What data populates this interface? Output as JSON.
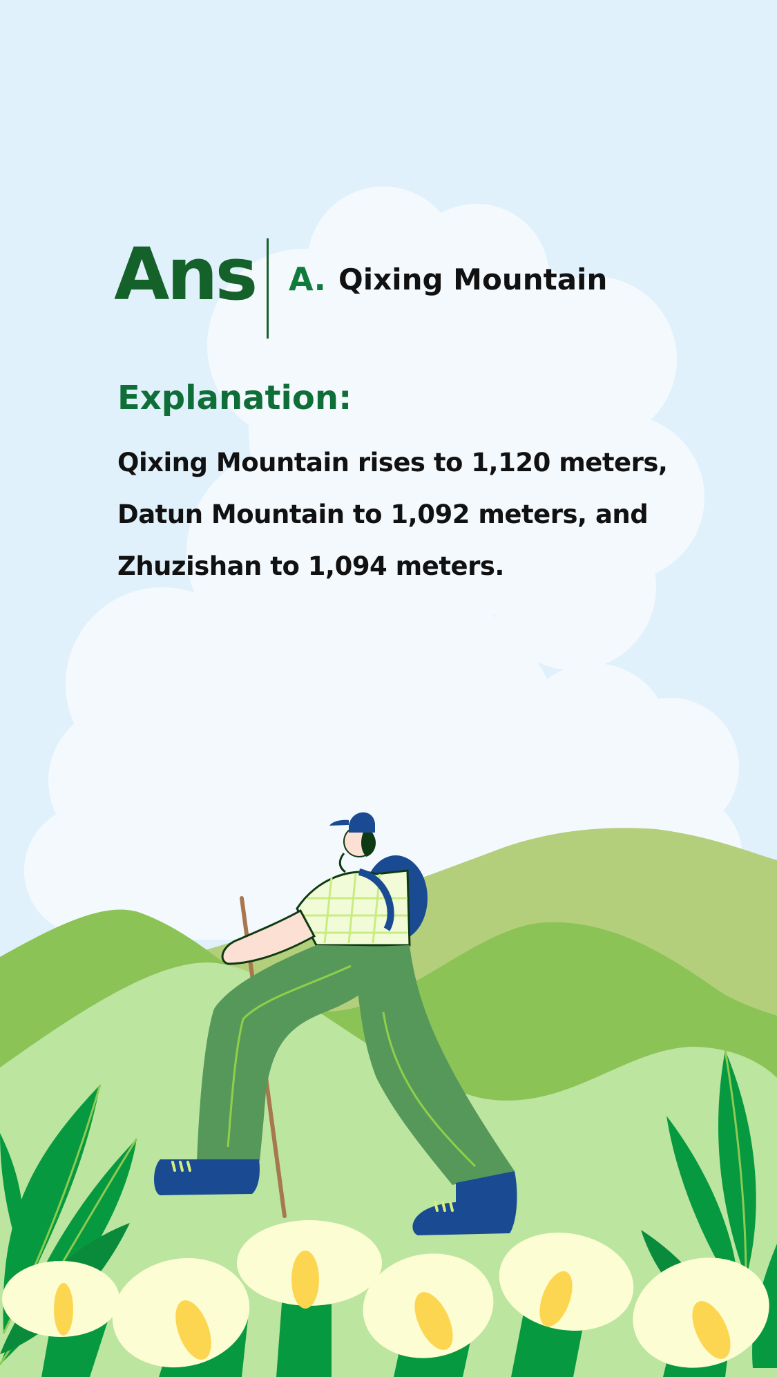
{
  "answer": {
    "label": "Ans",
    "option_letter": "A.",
    "option_text": "Qixing Mountain"
  },
  "explanation": {
    "title": "Explanation:",
    "body": "Qixing Mountain rises to 1,120 meters, Datun Mountain to 1,092 meters, and Zhuzishan to 1,094 meters."
  },
  "colors": {
    "sky": "#e0f1fb",
    "cloud": "#f4f9fe",
    "hill_far": "#b4cf7c",
    "hill_mid": "#8cc357",
    "hill_front": "#bce5a0",
    "leaf_dark": "#07993f",
    "flower": "#fdfdd3",
    "flower_center": "#fdd651",
    "pants": "#56985a",
    "shoes_backpack": "#1a4b92",
    "answer_accent": "#14612a"
  },
  "illustration": {
    "icons": [
      "cloud-icon",
      "hills-icon",
      "hiker-icon",
      "calla-lily-icon",
      "leaf-icon"
    ]
  }
}
